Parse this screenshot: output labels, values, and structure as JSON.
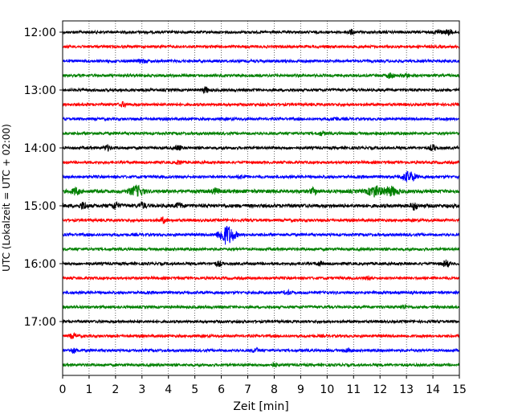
{
  "chart_data": {
    "type": "line",
    "title": "",
    "xlabel": "Zeit  [min]",
    "ylabel": "UTC (Lokalzeit = UTC + 02:00)",
    "xlim": [
      0,
      15
    ],
    "x_ticks": [
      "0",
      "1",
      "2",
      "3",
      "4",
      "5",
      "6",
      "7",
      "8",
      "9",
      "10",
      "11",
      "12",
      "13",
      "14",
      "15"
    ],
    "y_tick_labels": [
      "12:00",
      "13:00",
      "14:00",
      "15:00",
      "16:00",
      "17:00"
    ],
    "grid": "vertical dotted",
    "colors": [
      "#000000",
      "#ff0000",
      "#0000ff",
      "#008000"
    ],
    "traces": [
      {
        "start": "12:00",
        "color": "#000000",
        "noise": 0.25,
        "bursts": [
          {
            "x": 10.9,
            "amp": 2.5
          },
          {
            "x": 14.2,
            "amp": 2.8
          },
          {
            "x": 14.6,
            "amp": 3.0
          }
        ]
      },
      {
        "start": "12:15",
        "color": "#ff0000",
        "noise": 0.25,
        "bursts": []
      },
      {
        "start": "12:30",
        "color": "#0000ff",
        "noise": 0.3,
        "bursts": [
          {
            "x": 3.0,
            "amp": 2.0
          }
        ]
      },
      {
        "start": "12:45",
        "color": "#008000",
        "noise": 0.3,
        "bursts": [
          {
            "x": 12.4,
            "amp": 3.0
          },
          {
            "x": 13.0,
            "amp": 2.0
          }
        ]
      },
      {
        "start": "13:00",
        "color": "#000000",
        "noise": 0.3,
        "bursts": [
          {
            "x": 5.4,
            "amp": 3.0
          }
        ]
      },
      {
        "start": "13:15",
        "color": "#ff0000",
        "noise": 0.3,
        "bursts": [
          {
            "x": 2.3,
            "amp": 2.5
          }
        ]
      },
      {
        "start": "13:30",
        "color": "#0000ff",
        "noise": 0.25,
        "bursts": [
          {
            "x": 10.3,
            "amp": 2.0
          }
        ]
      },
      {
        "start": "13:45",
        "color": "#008000",
        "noise": 0.3,
        "bursts": [
          {
            "x": 9.8,
            "amp": 2.0
          }
        ]
      },
      {
        "start": "14:00",
        "color": "#000000",
        "noise": 0.3,
        "bursts": [
          {
            "x": 1.7,
            "amp": 3.0
          },
          {
            "x": 4.4,
            "amp": 2.5
          },
          {
            "x": 14.0,
            "amp": 3.0
          }
        ]
      },
      {
        "start": "14:15",
        "color": "#ff0000",
        "noise": 0.25,
        "bursts": [
          {
            "x": 4.4,
            "amp": 2.0
          }
        ]
      },
      {
        "start": "14:30",
        "color": "#0000ff",
        "noise": 0.3,
        "bursts": [
          {
            "x": 6.8,
            "amp": 2.0
          },
          {
            "x": 13.1,
            "amp": 6.0
          }
        ]
      },
      {
        "start": "14:45",
        "color": "#008000",
        "noise": 0.8,
        "bursts": [
          {
            "x": 0.5,
            "amp": 4.0
          },
          {
            "x": 2.8,
            "amp": 6.0
          },
          {
            "x": 5.8,
            "amp": 3.0
          },
          {
            "x": 9.5,
            "amp": 3.0
          },
          {
            "x": 11.8,
            "amp": 6.0
          },
          {
            "x": 12.4,
            "amp": 5.0
          }
        ]
      },
      {
        "start": "15:00",
        "color": "#000000",
        "noise": 0.8,
        "bursts": [
          {
            "x": 0.8,
            "amp": 4.0
          },
          {
            "x": 2.0,
            "amp": 4.0
          },
          {
            "x": 3.0,
            "amp": 3.5
          },
          {
            "x": 4.4,
            "amp": 3.0
          },
          {
            "x": 13.3,
            "amp": 4.0
          }
        ]
      },
      {
        "start": "15:15",
        "color": "#ff0000",
        "noise": 0.3,
        "bursts": [
          {
            "x": 3.8,
            "amp": 3.0
          }
        ]
      },
      {
        "start": "15:30",
        "color": "#0000ff",
        "noise": 0.3,
        "bursts": [
          {
            "x": 6.1,
            "amp": 6.0
          },
          {
            "x": 6.3,
            "amp": 7.0
          }
        ]
      },
      {
        "start": "15:45",
        "color": "#008000",
        "noise": 0.3,
        "bursts": []
      },
      {
        "start": "16:00",
        "color": "#000000",
        "noise": 0.3,
        "bursts": [
          {
            "x": 5.9,
            "amp": 2.5
          },
          {
            "x": 9.7,
            "amp": 2.0
          },
          {
            "x": 14.5,
            "amp": 4.0
          }
        ]
      },
      {
        "start": "16:15",
        "color": "#ff0000",
        "noise": 0.25,
        "bursts": [
          {
            "x": 11.6,
            "amp": 2.0
          }
        ]
      },
      {
        "start": "16:30",
        "color": "#0000ff",
        "noise": 0.25,
        "bursts": [
          {
            "x": 8.5,
            "amp": 2.0
          }
        ]
      },
      {
        "start": "16:45",
        "color": "#008000",
        "noise": 0.25,
        "bursts": [
          {
            "x": 12.9,
            "amp": 2.0
          }
        ]
      },
      {
        "start": "17:00",
        "color": "#000000",
        "noise": 0.25,
        "bursts": []
      },
      {
        "start": "17:15",
        "color": "#ff0000",
        "noise": 0.25,
        "bursts": [
          {
            "x": 0.4,
            "amp": 3.0
          }
        ]
      },
      {
        "start": "17:30",
        "color": "#0000ff",
        "noise": 0.25,
        "bursts": [
          {
            "x": 0.4,
            "amp": 2.5
          },
          {
            "x": 7.3,
            "amp": 2.5
          },
          {
            "x": 10.8,
            "amp": 2.5
          }
        ]
      },
      {
        "start": "17:45",
        "color": "#008000",
        "noise": 0.25,
        "bursts": [
          {
            "x": 8.0,
            "amp": 2.0
          }
        ]
      }
    ]
  }
}
